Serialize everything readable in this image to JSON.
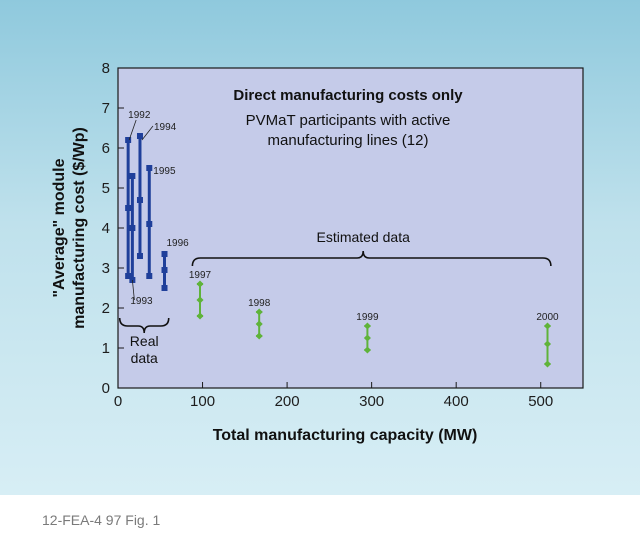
{
  "chart_data": {
    "type": "scatter",
    "title": "Direct manufacturing costs only",
    "subtitle": "PVMaT participants with active manufacturing lines (12)",
    "xlabel": "Total manufacturing capacity (MW)",
    "ylabel": "\"Average\" module manufacturing cost ($/Wp)",
    "xlim": [
      0,
      550
    ],
    "ylim": [
      0,
      8
    ],
    "x_ticks": [
      "0",
      "100",
      "200",
      "300",
      "400",
      "500"
    ],
    "y_ticks": [
      "0",
      "1",
      "2",
      "3",
      "4",
      "5",
      "6",
      "7",
      "8"
    ],
    "grid": false,
    "series": [
      {
        "name": "Real data",
        "color": "#1f3f9a",
        "points": [
          {
            "label": "1992",
            "x": 12,
            "low": 2.8,
            "mid": 4.5,
            "high": 6.2
          },
          {
            "label": "1993",
            "x": 17,
            "low": 2.7,
            "mid": 4.0,
            "high": 5.3
          },
          {
            "label": "1994",
            "x": 26,
            "low": 3.3,
            "mid": 4.7,
            "high": 6.3
          },
          {
            "label": "1995",
            "x": 37,
            "low": 2.8,
            "mid": 4.1,
            "high": 5.5
          },
          {
            "label": "1996",
            "x": 55,
            "low": 2.5,
            "mid": 2.95,
            "high": 3.35
          }
        ]
      },
      {
        "name": "Estimated data",
        "color": "#5fb33a",
        "points": [
          {
            "label": "1997",
            "x": 97,
            "low": 1.8,
            "mid": 2.2,
            "high": 2.6
          },
          {
            "label": "1998",
            "x": 167,
            "low": 1.3,
            "mid": 1.6,
            "high": 1.9
          },
          {
            "label": "1999",
            "x": 295,
            "low": 0.95,
            "mid": 1.25,
            "high": 1.55
          },
          {
            "label": "2000",
            "x": 508,
            "low": 0.6,
            "mid": 1.1,
            "high": 1.55
          }
        ]
      }
    ],
    "annotations": {
      "real": "Real",
      "data": "data",
      "estimated": "Estimated data"
    }
  },
  "caption": "12-FEA-4 97 Fig. 1"
}
